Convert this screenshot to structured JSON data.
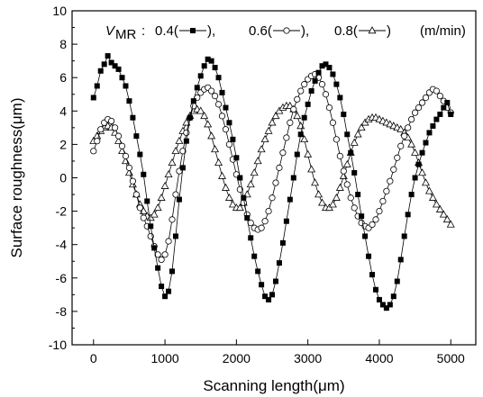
{
  "chart_data": {
    "type": "line",
    "xlabel": "Scanning length(μm)",
    "ylabel": "Surface roughness(μm)",
    "xlim": [
      -300,
      5350
    ],
    "ylim": [
      -10,
      10
    ],
    "xticks": [
      0,
      1000,
      2000,
      3000,
      4000,
      5000
    ],
    "yticks": [
      10,
      8,
      6,
      4,
      2,
      0,
      -2,
      -4,
      -6,
      -8,
      -10
    ],
    "grid": false,
    "legend": {
      "placement": "top",
      "variable": "V",
      "variable_subscript": "MR",
      "separator": ":",
      "entries": [
        {
          "label": "0.4(",
          "close": "),"
        },
        {
          "label": "0.6(",
          "close": "),"
        },
        {
          "label": "0.8(",
          "close": ")"
        }
      ],
      "units": "(m/min)"
    },
    "series": [
      {
        "marker": "filled-square",
        "x": [
          0,
          50,
          100,
          150,
          200,
          250,
          300,
          350,
          400,
          450,
          500,
          550,
          600,
          650,
          700,
          750,
          800,
          850,
          900,
          950,
          1000,
          1050,
          1100,
          1150,
          1200,
          1250,
          1300,
          1350,
          1400,
          1450,
          1500,
          1550,
          1600,
          1650,
          1700,
          1750,
          1800,
          1850,
          1900,
          1950,
          2000,
          2050,
          2100,
          2150,
          2200,
          2250,
          2300,
          2350,
          2400,
          2450,
          2500,
          2550,
          2600,
          2650,
          2700,
          2750,
          2800,
          2850,
          2900,
          2950,
          3000,
          3050,
          3100,
          3150,
          3200,
          3250,
          3300,
          3350,
          3400,
          3450,
          3500,
          3550,
          3600,
          3650,
          3700,
          3750,
          3800,
          3850,
          3900,
          3950,
          4000,
          4050,
          4100,
          4150,
          4200,
          4250,
          4300,
          4350,
          4400,
          4450,
          4500,
          4550,
          4600,
          4650,
          4700,
          4750,
          4800,
          4850,
          4900,
          4950,
          5000
        ],
        "y": [
          4.8,
          5.5,
          6.4,
          6.8,
          7.3,
          6.9,
          6.7,
          6.5,
          6.0,
          5.5,
          4.6,
          3.6,
          2.5,
          1.4,
          0.2,
          -1.4,
          -2.9,
          -4.2,
          -5.4,
          -6.5,
          -7.1,
          -6.8,
          -5.6,
          -3.5,
          -1.3,
          0.6,
          2.2,
          3.6,
          4.6,
          5.4,
          6.1,
          6.7,
          7.1,
          7.0,
          6.6,
          6.0,
          5.1,
          4.2,
          3.3,
          2.3,
          1.2,
          0.0,
          -1.2,
          -2.4,
          -3.6,
          -4.7,
          -5.6,
          -6.4,
          -7.1,
          -7.3,
          -7.0,
          -6.2,
          -5.1,
          -3.9,
          -2.6,
          -1.3,
          0.0,
          1.4,
          2.6,
          3.6,
          4.4,
          5.2,
          5.8,
          6.3,
          6.7,
          6.8,
          6.6,
          6.2,
          5.6,
          4.8,
          3.8,
          2.6,
          1.5,
          0.3,
          -1.0,
          -2.3,
          -3.5,
          -4.7,
          -5.8,
          -6.7,
          -7.3,
          -7.6,
          -7.8,
          -7.6,
          -7.1,
          -6.2,
          -4.9,
          -3.5,
          -2.2,
          -1.0,
          0.0,
          0.8,
          1.5,
          2.1,
          2.7,
          3.1,
          3.5,
          3.8,
          4.2,
          4.5,
          3.8
        ]
      },
      {
        "marker": "open-circle",
        "x": [
          0,
          50,
          100,
          150,
          200,
          250,
          300,
          350,
          400,
          450,
          500,
          550,
          600,
          650,
          700,
          750,
          800,
          850,
          900,
          950,
          1000,
          1050,
          1100,
          1150,
          1200,
          1250,
          1300,
          1350,
          1400,
          1450,
          1500,
          1550,
          1600,
          1650,
          1700,
          1750,
          1800,
          1850,
          1900,
          1950,
          2000,
          2050,
          2100,
          2150,
          2200,
          2250,
          2300,
          2350,
          2400,
          2450,
          2500,
          2550,
          2600,
          2650,
          2700,
          2750,
          2800,
          2850,
          2900,
          2950,
          3000,
          3050,
          3100,
          3150,
          3200,
          3250,
          3300,
          3350,
          3400,
          3450,
          3500,
          3550,
          3600,
          3650,
          3700,
          3750,
          3800,
          3850,
          3900,
          3950,
          4000,
          4050,
          4100,
          4150,
          4200,
          4250,
          4300,
          4350,
          4400,
          4450,
          4500,
          4550,
          4600,
          4650,
          4700,
          4750,
          4800,
          4850,
          4900,
          4950,
          5000
        ],
        "y": [
          1.6,
          2.2,
          2.9,
          3.3,
          3.5,
          3.4,
          3.0,
          2.5,
          1.9,
          1.3,
          0.6,
          -0.2,
          -1.0,
          -1.8,
          -2.4,
          -2.9,
          -3.5,
          -4.1,
          -4.6,
          -4.9,
          -4.6,
          -3.8,
          -2.5,
          -1.0,
          0.4,
          1.6,
          2.7,
          3.6,
          4.3,
          4.8,
          5.1,
          5.3,
          5.4,
          5.2,
          4.9,
          4.4,
          3.7,
          2.9,
          2.0,
          1.1,
          0.2,
          -0.7,
          -1.5,
          -2.2,
          -2.7,
          -3.0,
          -3.1,
          -3.0,
          -2.6,
          -2.0,
          -1.2,
          -0.3,
          0.6,
          1.5,
          2.4,
          3.3,
          4.1,
          4.7,
          5.2,
          5.6,
          5.9,
          6.1,
          6.2,
          6.0,
          5.6,
          5.0,
          4.2,
          3.3,
          2.3,
          1.3,
          0.4,
          -0.4,
          -1.2,
          -1.8,
          -2.3,
          -2.7,
          -2.9,
          -3.0,
          -2.8,
          -2.5,
          -2.0,
          -1.4,
          -0.8,
          -0.2,
          0.5,
          1.2,
          1.9,
          2.5,
          3.0,
          3.5,
          3.9,
          4.2,
          4.5,
          4.8,
          5.1,
          5.3,
          5.2,
          4.9,
          4.6,
          4.2,
          3.9
        ]
      },
      {
        "marker": "open-triangle",
        "x": [
          0,
          50,
          100,
          150,
          200,
          250,
          300,
          350,
          400,
          450,
          500,
          550,
          600,
          650,
          700,
          750,
          800,
          850,
          900,
          950,
          1000,
          1050,
          1100,
          1150,
          1200,
          1250,
          1300,
          1350,
          1400,
          1450,
          1500,
          1550,
          1600,
          1650,
          1700,
          1750,
          1800,
          1850,
          1900,
          1950,
          2000,
          2050,
          2100,
          2150,
          2200,
          2250,
          2300,
          2350,
          2400,
          2450,
          2500,
          2550,
          2600,
          2650,
          2700,
          2750,
          2800,
          2850,
          2900,
          2950,
          3000,
          3050,
          3100,
          3150,
          3200,
          3250,
          3300,
          3350,
          3400,
          3450,
          3500,
          3550,
          3600,
          3650,
          3700,
          3750,
          3800,
          3850,
          3900,
          3950,
          4000,
          4050,
          4100,
          4150,
          4200,
          4250,
          4300,
          4350,
          4400,
          4450,
          4500,
          4550,
          4600,
          4650,
          4700,
          4750,
          4800,
          4850,
          4900,
          4950,
          5000
        ],
        "y": [
          2.2,
          2.5,
          2.8,
          3.0,
          3.1,
          3.0,
          2.7,
          2.2,
          1.6,
          1.0,
          0.3,
          -0.4,
          -1.0,
          -1.6,
          -2.0,
          -2.3,
          -2.4,
          -2.2,
          -1.8,
          -1.2,
          -0.5,
          0.2,
          0.9,
          1.6,
          2.2,
          2.8,
          3.3,
          3.7,
          4.0,
          4.1,
          4.0,
          3.7,
          3.2,
          2.5,
          1.7,
          0.9,
          0.1,
          -0.6,
          -1.2,
          -1.6,
          -1.8,
          -1.8,
          -1.5,
          -1.0,
          -0.4,
          0.3,
          1.0,
          1.7,
          2.3,
          2.8,
          3.3,
          3.7,
          4.0,
          4.2,
          4.3,
          4.3,
          4.1,
          3.7,
          3.1,
          2.3,
          1.4,
          0.5,
          -0.3,
          -1.0,
          -1.5,
          -1.8,
          -1.8,
          -1.6,
          -1.2,
          -0.6,
          0.1,
          0.8,
          1.5,
          2.1,
          2.6,
          3.0,
          3.3,
          3.5,
          3.6,
          3.6,
          3.5,
          3.4,
          3.3,
          3.2,
          3.1,
          3.0,
          2.9,
          2.7,
          2.4,
          2.0,
          1.5,
          0.9,
          0.3,
          -0.3,
          -0.8,
          -1.2,
          -1.6,
          -1.9,
          -2.2,
          -2.5,
          -2.8
        ]
      }
    ]
  }
}
